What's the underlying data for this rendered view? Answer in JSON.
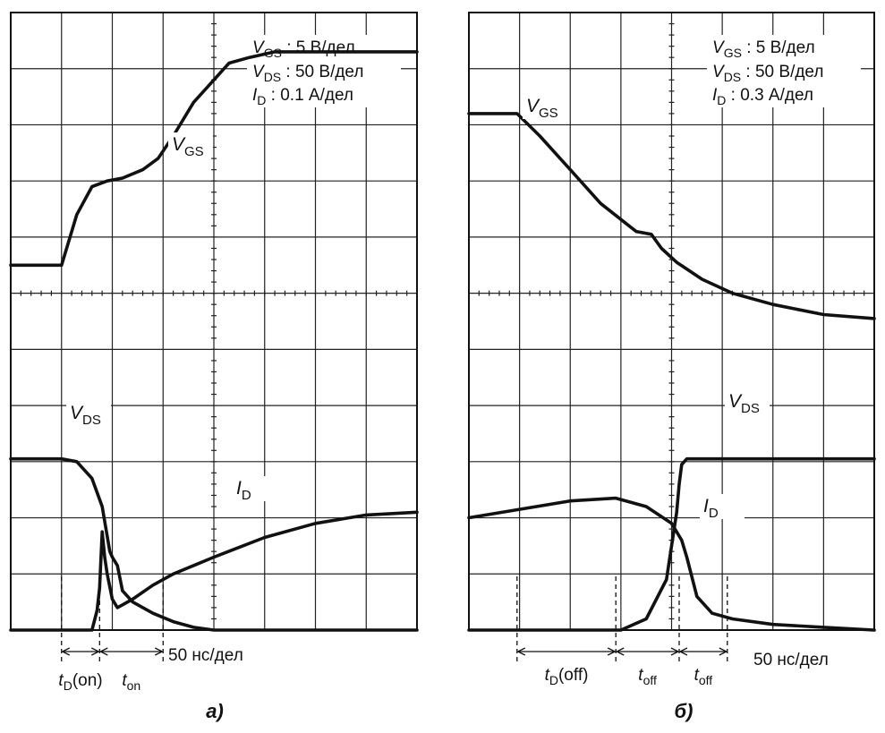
{
  "chart_data": [
    {
      "type": "line",
      "panel_label": "а)",
      "settings": [
        "V_GS : 5 В/дел",
        "V_DS : 50 В/дел",
        "I_D : 0.1 А/дел"
      ],
      "settings_rich": [
        {
          "sym": "V",
          "sub": "GS",
          "rest": " : 5 В/дел"
        },
        {
          "sym": "V",
          "sub": "DS",
          "rest": " : 50 В/дел"
        },
        {
          "sym": "I",
          "sub": "D",
          "rest": " : 0.1 А/дел"
        }
      ],
      "time_scale": "50 нс/дел",
      "grid": {
        "x_divisions": 8,
        "y_divisions": 11
      },
      "xlim": [
        0,
        8
      ],
      "ylim": [
        0,
        11
      ],
      "series": [
        {
          "name": "V_GS",
          "label_sym": "V",
          "label_sub": "GS",
          "x": [
            0,
            1,
            1.3,
            1.6,
            1.9,
            2.2,
            2.6,
            2.9,
            3.2,
            3.6,
            4,
            4.3,
            4.7,
            5.2,
            6,
            7,
            8
          ],
          "y": [
            6.5,
            6.5,
            7.4,
            7.9,
            8.0,
            8.05,
            8.2,
            8.4,
            8.8,
            9.4,
            9.8,
            10.1,
            10.2,
            10.3,
            10.3,
            10.3,
            10.3
          ]
        },
        {
          "name": "V_DS",
          "label_sym": "V",
          "label_sub": "DS",
          "x": [
            0,
            1,
            1.3,
            1.6,
            1.8,
            1.95,
            2.0,
            2.1,
            2.2,
            2.4,
            2.8,
            3.2,
            3.6,
            4,
            5,
            6,
            7,
            8
          ],
          "y": [
            3.05,
            3.05,
            3.0,
            2.7,
            2.2,
            1.4,
            1.3,
            1.15,
            0.7,
            0.5,
            0.3,
            0.15,
            0.05,
            0.0,
            0.0,
            0.0,
            0.0,
            0.0
          ]
        },
        {
          "name": "I_D",
          "label_sym": "I",
          "label_sub": "D",
          "x": [
            0,
            1.6,
            1.7,
            1.75,
            1.8,
            1.85,
            1.9,
            2.0,
            2.1,
            2.2,
            2.4,
            2.8,
            3.2,
            3.6,
            4,
            5,
            6,
            7,
            8
          ],
          "y": [
            0,
            0,
            0.35,
            0.75,
            1.75,
            1.3,
            1.0,
            0.55,
            0.4,
            0.45,
            0.55,
            0.8,
            1.0,
            1.15,
            1.3,
            1.65,
            1.9,
            2.05,
            2.1
          ]
        }
      ],
      "annotations": [
        {
          "sym": "t",
          "sub": "D",
          "rest": "(on)",
          "from": 1,
          "to": 1.75
        },
        {
          "sym": "t",
          "sub": "on",
          "rest": "",
          "from": 1.75,
          "to": 3.0
        }
      ]
    },
    {
      "type": "line",
      "panel_label": "б)",
      "settings": [
        "V_GS : 5 В/дел",
        "V_DS : 50 В/дел",
        "I_D : 0.3 А/дел"
      ],
      "settings_rich": [
        {
          "sym": "V",
          "sub": "GS",
          "rest": " : 5 В/дел"
        },
        {
          "sym": "V",
          "sub": "DS",
          "rest": " : 50 В/дел"
        },
        {
          "sym": "I",
          "sub": "D",
          "rest": " : 0.3 А/дел"
        }
      ],
      "time_scale": "50 нс/дел",
      "grid": {
        "x_divisions": 8,
        "y_divisions": 11
      },
      "xlim": [
        0,
        8
      ],
      "ylim": [
        0,
        11
      ],
      "series": [
        {
          "name": "V_GS",
          "label_sym": "V",
          "label_sub": "GS",
          "x": [
            0,
            0.95,
            1.4,
            2,
            2.6,
            3.3,
            3.6,
            3.8,
            4.1,
            4.6,
            5.2,
            6,
            7,
            8
          ],
          "y": [
            9.2,
            9.2,
            8.8,
            8.2,
            7.6,
            7.1,
            7.05,
            6.8,
            6.55,
            6.25,
            6.0,
            5.8,
            5.62,
            5.55
          ]
        },
        {
          "name": "V_DS",
          "label_sym": "V",
          "label_sub": "DS",
          "x": [
            0,
            2,
            3,
            3.5,
            3.9,
            4.1,
            4.15,
            4.2,
            4.3,
            4.4,
            5,
            6,
            7,
            8
          ],
          "y": [
            0,
            0,
            0,
            0.2,
            0.9,
            2.1,
            2.6,
            2.95,
            3.05,
            3.05,
            3.05,
            3.05,
            3.05,
            3.05
          ]
        },
        {
          "name": "I_D",
          "label_sym": "I",
          "label_sub": "D",
          "x": [
            0,
            1,
            2,
            2.9,
            3.5,
            4.0,
            4.2,
            4.3,
            4.5,
            4.8,
            5.2,
            6,
            7,
            8
          ],
          "y": [
            2.0,
            2.15,
            2.3,
            2.35,
            2.2,
            1.9,
            1.6,
            1.3,
            0.6,
            0.3,
            0.2,
            0.1,
            0.05,
            0.0
          ]
        }
      ],
      "annotations": [
        {
          "sym": "t",
          "sub": "D",
          "rest": "(off)",
          "from": 0.95,
          "to": 2.9
        },
        {
          "sym": "t",
          "sub": "off",
          "rest": "",
          "from": 2.9,
          "to": 4.15
        },
        {
          "sym": "t",
          "sub": "off",
          "rest": "",
          "from": 4.15,
          "to": 5.1
        }
      ]
    }
  ]
}
